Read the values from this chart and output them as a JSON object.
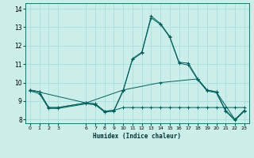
{
  "xlabel": "Humidex (Indice chaleur)",
  "bg_color": "#cceee8",
  "line_color": "#006060",
  "grid_color": "#aadddd",
  "xlim": [
    -0.5,
    23.5
  ],
  "ylim": [
    7.8,
    14.3
  ],
  "yticks": [
    8,
    9,
    10,
    11,
    12,
    13,
    14
  ],
  "xticks": [
    0,
    1,
    2,
    3,
    6,
    7,
    8,
    9,
    10,
    11,
    12,
    13,
    14,
    15,
    16,
    17,
    18,
    19,
    20,
    21,
    22,
    23
  ],
  "xtick_labels": [
    "0",
    "1",
    "2",
    "3",
    "6",
    "7",
    "8",
    "9",
    "10",
    "11",
    "12",
    "13",
    "14",
    "15",
    "16",
    "17",
    "18",
    "19",
    "20",
    "21",
    "22",
    "23"
  ],
  "lines": [
    {
      "x": [
        0,
        1,
        2,
        3,
        6,
        7,
        8,
        9,
        10,
        11,
        12,
        13,
        14,
        15,
        16,
        17,
        18,
        19,
        20,
        21,
        22,
        23
      ],
      "y": [
        9.6,
        9.5,
        8.65,
        8.65,
        8.9,
        8.85,
        8.45,
        8.5,
        9.6,
        11.3,
        11.65,
        13.6,
        13.2,
        12.5,
        11.1,
        11.05,
        10.2,
        9.6,
        9.5,
        8.5,
        8.0,
        8.5
      ]
    },
    {
      "x": [
        0,
        1,
        2,
        3,
        6,
        7,
        8,
        9,
        10,
        11,
        12,
        13,
        14,
        15,
        16,
        17,
        18,
        19,
        20,
        21,
        22,
        23
      ],
      "y": [
        9.55,
        9.4,
        8.6,
        8.6,
        8.85,
        8.8,
        8.4,
        8.45,
        9.55,
        11.25,
        11.6,
        13.5,
        13.15,
        12.45,
        11.05,
        10.95,
        10.15,
        9.55,
        9.45,
        8.45,
        7.95,
        8.45
      ]
    },
    {
      "x": [
        0,
        6,
        10,
        14,
        18,
        19,
        20,
        22,
        23
      ],
      "y": [
        9.6,
        8.9,
        9.6,
        10.0,
        10.2,
        9.6,
        9.5,
        8.0,
        8.5
      ]
    },
    {
      "x": [
        0,
        1,
        2,
        3,
        6,
        7,
        8,
        9,
        10,
        11,
        12,
        13,
        14,
        15,
        16,
        17,
        18,
        19,
        20,
        21,
        22,
        23
      ],
      "y": [
        9.6,
        9.5,
        8.65,
        8.65,
        8.9,
        8.85,
        8.45,
        8.5,
        8.65,
        8.65,
        8.65,
        8.65,
        8.65,
        8.65,
        8.65,
        8.65,
        8.65,
        8.65,
        8.65,
        8.65,
        8.65,
        8.65
      ]
    }
  ]
}
